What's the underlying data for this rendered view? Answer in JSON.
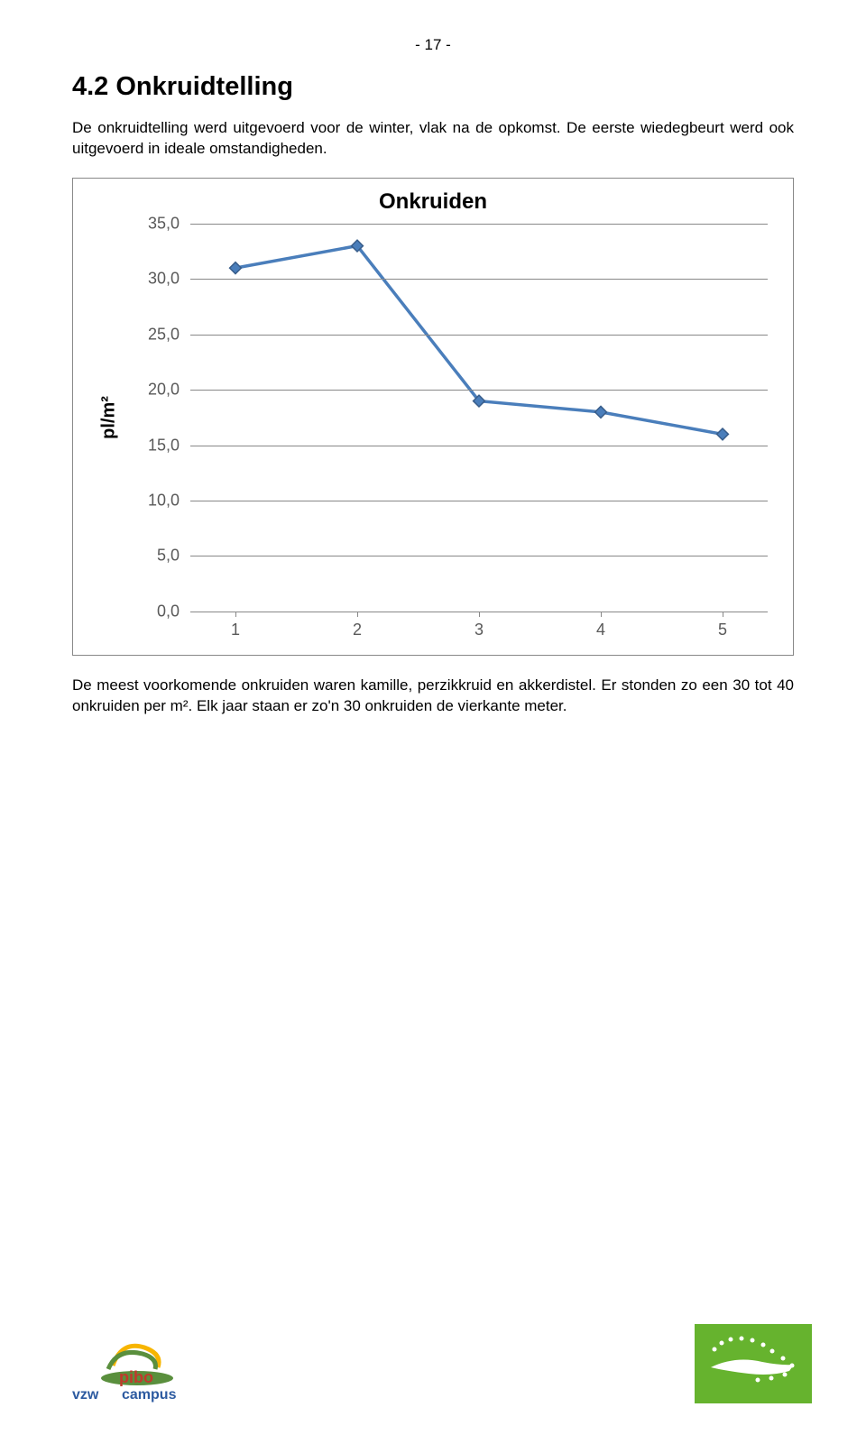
{
  "page": {
    "number_label": "- 17 -"
  },
  "section": {
    "title": "4.2  Onkruidtelling",
    "intro_text": "De onkruidtelling werd uitgevoerd voor de winter, vlak na de opkomst. De eerste wiedegbeurt werd ook uitgevoerd in ideale omstandigheden.",
    "outro_text": "De meest voorkomende onkruiden waren kamille, perzikkruid en akkerdistel. Er stonden zo een 30 tot 40 onkruiden per m². Elk jaar staan er zo'n 30 onkruiden de vierkante meter."
  },
  "chart": {
    "type": "line",
    "title": "Onkruiden",
    "y_axis_label": "pl/m²",
    "ylim": [
      0.0,
      35.0
    ],
    "ytick_step": 5.0,
    "ytick_labels": [
      "0,0",
      "5,0",
      "10,0",
      "15,0",
      "20,0",
      "25,0",
      "30,0",
      "35,0"
    ],
    "x_categories": [
      "1",
      "2",
      "3",
      "4",
      "5"
    ],
    "values": [
      31.0,
      33.0,
      19.0,
      18.0,
      16.0
    ],
    "line_color": "#4a7ebb",
    "marker_fill": "#4a7ebb",
    "marker_stroke": "#385d8a",
    "marker_size": 9,
    "grid_color": "#888888",
    "tick_label_color": "#595959",
    "tick_fontsize": 18,
    "title_fontsize": 24,
    "background_color": "#ffffff"
  },
  "footer": {
    "left_logo_alt": "vzw pibo campus",
    "right_logo_alt": "EU organic logo"
  }
}
